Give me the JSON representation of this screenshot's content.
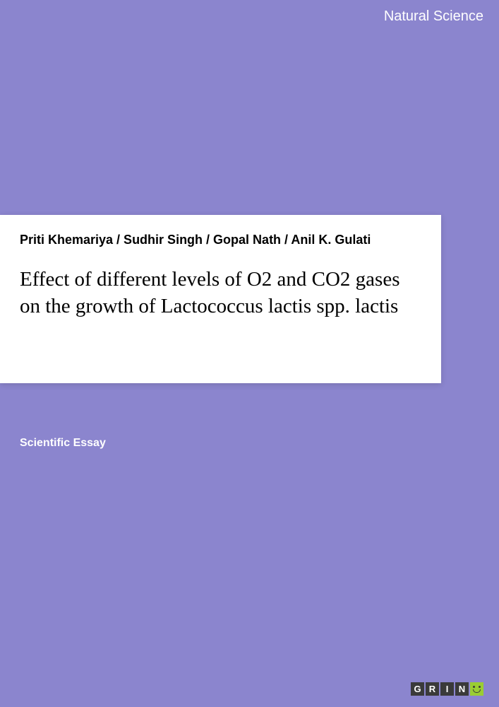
{
  "category": "Natural Science",
  "authors": "Priti Khemariya / Sudhir Singh / Gopal Nath / Anil K. Gulati",
  "title": "Effect of different levels of O2 and CO2 gases on the growth of Lactococcus lactis spp. lactis",
  "essay_type": "Scientific Essay",
  "logo": {
    "letters": [
      "G",
      "R",
      "I",
      "N"
    ]
  },
  "colors": {
    "background": "#8b85ce",
    "panel": "#ffffff",
    "text_dark": "#000000",
    "text_light": "#ffffff",
    "logo_box": "#3a3a3a",
    "logo_smile": "#9acd32"
  }
}
